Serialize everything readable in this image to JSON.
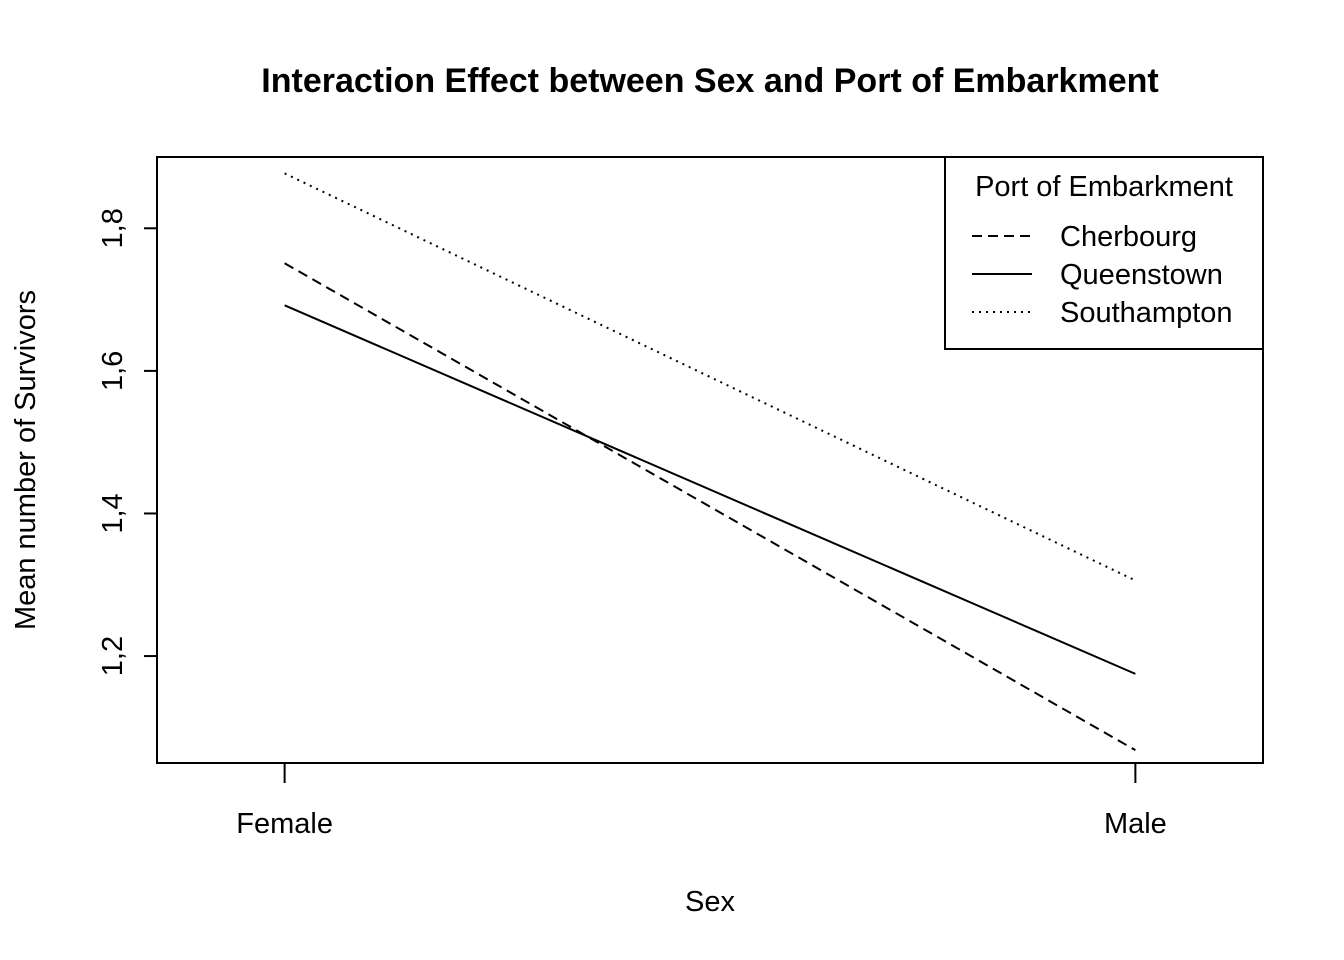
{
  "chart_data": {
    "type": "line",
    "title": "Interaction Effect between Sex and Port of Embarkment",
    "xlabel": "Sex",
    "ylabel": "Mean number of Survivors",
    "categories": [
      "Female",
      "Male"
    ],
    "ylim": [
      1.05,
      1.9
    ],
    "yticks": [
      1.2,
      1.4,
      1.6,
      1.8
    ],
    "ytick_labels": [
      "1,2",
      "1,4",
      "1,6",
      "1,8"
    ],
    "grid": false,
    "legend": {
      "title": "Port of Embarkment",
      "placement": "top-right"
    },
    "series": [
      {
        "name": "Cherbourg",
        "style": "dashed",
        "values": [
          1.751,
          1.068
        ]
      },
      {
        "name": "Queenstown",
        "style": "solid",
        "values": [
          1.692,
          1.175
        ]
      },
      {
        "name": "Southampton",
        "style": "dotted",
        "values": [
          1.877,
          1.306
        ]
      }
    ],
    "colors": {
      "line": "#000000",
      "background": "#ffffff"
    }
  }
}
